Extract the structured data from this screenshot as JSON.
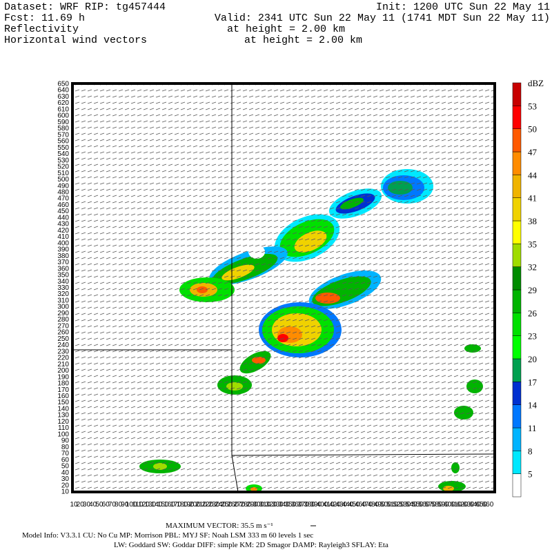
{
  "header": {
    "left": [
      "Dataset: WRF  RIP: tg457444",
      "Fcst:   11.69 h",
      "Reflectivity",
      "Horizontal wind vectors"
    ],
    "right": [
      "Init: 1200 UTC Sun 22 May 11",
      "Valid: 2341 UTC Sun 22 May 11 (1741 MDT Sun 22 May 11)",
      "at height =  2.00 km",
      "at height =  2.00 km"
    ]
  },
  "plot": {
    "yticks": [
      10,
      20,
      30,
      40,
      50,
      60,
      70,
      80,
      90,
      100,
      110,
      120,
      130,
      140,
      150,
      160,
      170,
      180,
      190,
      200,
      210,
      220,
      230,
      240,
      250,
      260,
      270,
      280,
      290,
      300,
      310,
      320,
      330,
      340,
      350,
      360,
      370,
      380,
      390,
      400,
      410,
      420,
      430,
      440,
      450,
      460,
      470,
      480,
      490,
      500,
      510,
      520,
      530,
      540,
      550,
      560,
      570,
      580,
      590,
      600,
      610,
      620,
      630,
      640,
      650
    ],
    "xticks": [
      10,
      20,
      30,
      40,
      50,
      60,
      70,
      80,
      90,
      100,
      110,
      120,
      130,
      140,
      150,
      160,
      170,
      180,
      190,
      200,
      210,
      220,
      230,
      240,
      250,
      260,
      270,
      280,
      290,
      300,
      310,
      320,
      330,
      340,
      350,
      360,
      370,
      380,
      390,
      400,
      410,
      420,
      430,
      440,
      450,
      460,
      470,
      480,
      490,
      500,
      510,
      520,
      530,
      540,
      550,
      560,
      570,
      580,
      590,
      600,
      610,
      620,
      630,
      640,
      650,
      660
    ]
  },
  "colorbar": {
    "unit": "dBZ",
    "levels": [
      5,
      8,
      11,
      14,
      17,
      20,
      23,
      26,
      29,
      32,
      35,
      38,
      41,
      44,
      47,
      50,
      53
    ],
    "colors": [
      "#ffffff",
      "#00e8ff",
      "#00b4ff",
      "#0078ff",
      "#0030d0",
      "#00a050",
      "#00ff00",
      "#00e000",
      "#00b400",
      "#008c00",
      "#a0dc00",
      "#ffff00",
      "#f0d200",
      "#f0b400",
      "#ff8c00",
      "#ff5a00",
      "#ff0000",
      "#c80000"
    ]
  },
  "footer": {
    "vector": "MAXIMUM VECTOR:  35.5 m s⁻¹",
    "lines": [
      "Model Info: V3.3.1    CU: No Cu    MP: Morrison    PBL: MYJ     SF: Noah LSM     333 m    60 levels     1 sec",
      "LW: Goddard SW: Goddar DIFF: simple KM: 2D Smagor DAMP: Rayleigh3  SFLAY: Eta"
    ]
  }
}
